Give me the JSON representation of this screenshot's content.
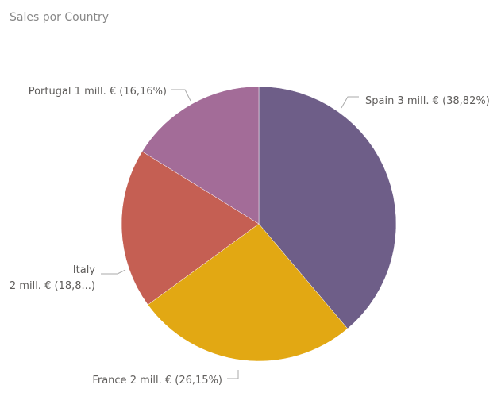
{
  "chart_data": {
    "type": "pie",
    "title": "Sales por Country",
    "categories": [
      "Spain",
      "France",
      "Italy",
      "Portugal"
    ],
    "values": [
      38.82,
      26.15,
      18.87,
      16.16
    ],
    "amount_labels": [
      "3 mill. €",
      "2 mill. €",
      "2 mill. €",
      "1 mill. €"
    ],
    "value_labels": [
      "(38,82%)",
      "(26,15%)",
      "(18,8...)",
      "(16,16%)"
    ],
    "colors": [
      "#6e5e88",
      "#e2a813",
      "#c55f53",
      "#a36c98"
    ]
  }
}
